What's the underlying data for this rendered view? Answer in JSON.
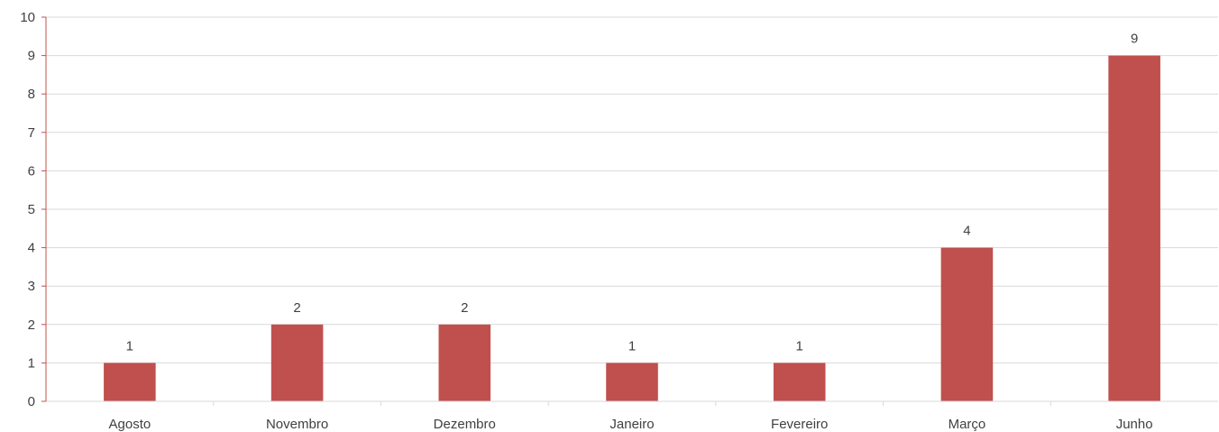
{
  "chart_data": {
    "type": "bar",
    "categories": [
      "Agosto",
      "Novembro",
      "Dezembro",
      "Janeiro",
      "Fevereiro",
      "Março",
      "Junho"
    ],
    "values": [
      1,
      2,
      2,
      1,
      1,
      4,
      9
    ],
    "title": "",
    "xlabel": "",
    "ylabel": "",
    "ylim": [
      0,
      10
    ],
    "yticks": [
      0,
      1,
      2,
      3,
      4,
      5,
      6,
      7,
      8,
      9,
      10
    ],
    "grid": true,
    "legend": "none",
    "data_labels": true,
    "colors": {
      "bar": "#c0504d",
      "y_axis_line": "#c0504d",
      "grid": "#d9d9d9",
      "text": "#404040"
    }
  }
}
